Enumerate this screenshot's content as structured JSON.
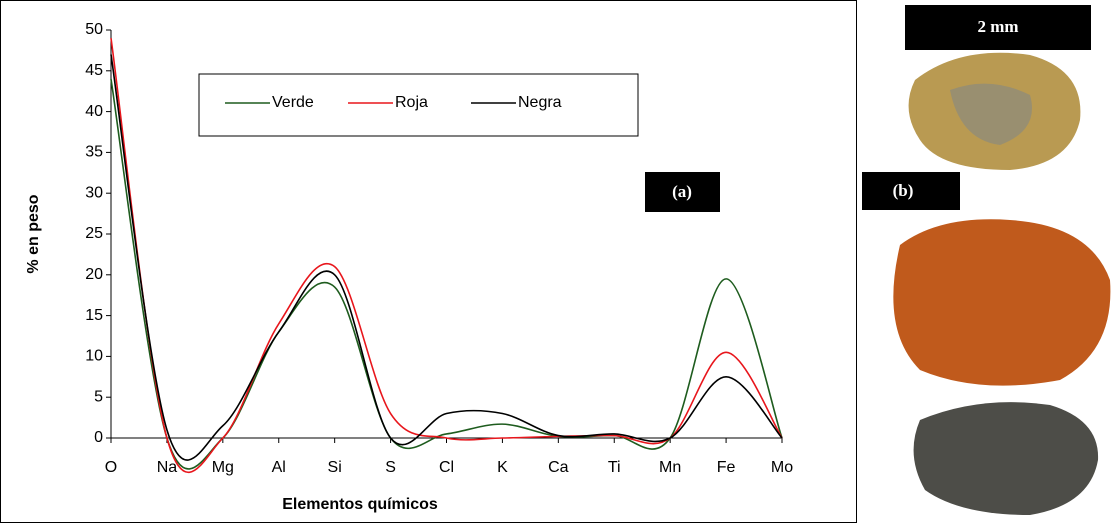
{
  "chart_data": {
    "type": "line",
    "x_label": "Elementos químicos",
    "y_label": "% en peso",
    "categories": [
      "O",
      "Na",
      "Mg",
      "Al",
      "Si",
      "S",
      "Cl",
      "K",
      "Ca",
      "Ti",
      "Mn",
      "Fe",
      "Mo"
    ],
    "series": [
      {
        "name": "Verde",
        "color": "#1e5c1e",
        "values": [
          44,
          0,
          0,
          13,
          18.5,
          0,
          0.5,
          1.7,
          0.2,
          0.3,
          0,
          19.5,
          0
        ]
      },
      {
        "name": "Roja",
        "color": "#e8161c",
        "values": [
          49,
          0,
          0,
          14,
          21,
          3,
          0,
          0,
          0.2,
          0.3,
          0,
          10.5,
          0
        ]
      },
      {
        "name": "Negra",
        "color": "#000000",
        "values": [
          47,
          1,
          1.5,
          13,
          20,
          0,
          3,
          3,
          0.3,
          0.5,
          0,
          7.5,
          0
        ]
      }
    ],
    "ylim": [
      0,
      50
    ],
    "yticks": [
      0,
      5,
      10,
      15,
      20,
      25,
      30,
      35,
      40,
      45,
      50
    ],
    "annotations": [
      "(a)",
      "(b)",
      "2 mm"
    ],
    "legend": "top"
  }
}
